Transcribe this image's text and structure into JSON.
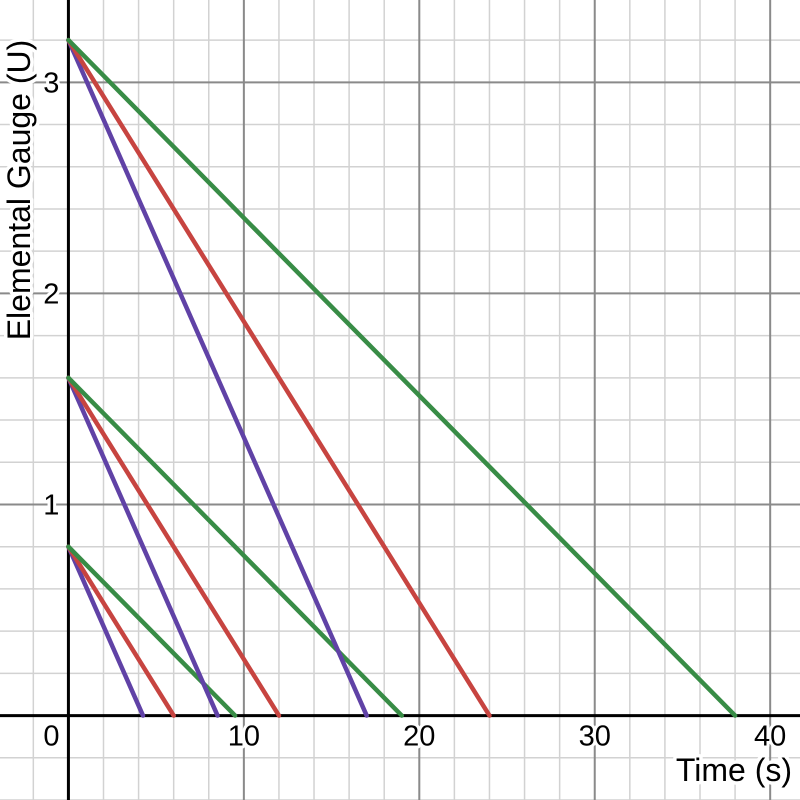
{
  "chart_data": {
    "type": "line",
    "title": "",
    "xlabel": "Time (s)",
    "ylabel": "Elemental Gauge (U)",
    "xlim": [
      -3.9,
      41.7
    ],
    "ylim": [
      -0.4,
      3.39
    ],
    "x_ticks": [
      0,
      10,
      20,
      30,
      40
    ],
    "y_ticks": [
      1,
      2,
      3
    ],
    "grid": {
      "on": true,
      "minor_dx": 2,
      "minor_dy": 0.2,
      "major_dx": 10,
      "major_dy": 1,
      "minor_color": "#d2d2d2",
      "major_color": "#8a8a8a"
    },
    "axis_color": "#000000",
    "label_color": "#000000",
    "legend": "none",
    "colors": {
      "slow_decay_green": "#388c46",
      "medium_decay_red": "#c74440",
      "fast_decay_purple": "#6042a6"
    },
    "series": [
      {
        "name": "gauge-0.8U-purple-fast-rate",
        "color": "#6042a6",
        "start_gauge_u": 0.8,
        "zero_at_s": 4.25,
        "points": [
          [
            0,
            0.8
          ],
          [
            4.25,
            0
          ]
        ]
      },
      {
        "name": "gauge-0.8U-red-medium-rate",
        "color": "#c74440",
        "start_gauge_u": 0.8,
        "zero_at_s": 6,
        "points": [
          [
            0,
            0.8
          ],
          [
            6,
            0
          ]
        ]
      },
      {
        "name": "gauge-0.8U-green-slow-rate",
        "color": "#388c46",
        "start_gauge_u": 0.8,
        "zero_at_s": 9.5,
        "points": [
          [
            0,
            0.8
          ],
          [
            9.5,
            0
          ]
        ]
      },
      {
        "name": "gauge-1.6U-purple-fast-rate",
        "color": "#6042a6",
        "start_gauge_u": 1.6,
        "zero_at_s": 8.5,
        "points": [
          [
            0,
            1.6
          ],
          [
            8.5,
            0
          ]
        ]
      },
      {
        "name": "gauge-1.6U-red-medium-rate",
        "color": "#c74440",
        "start_gauge_u": 1.6,
        "zero_at_s": 12,
        "points": [
          [
            0,
            1.6
          ],
          [
            12,
            0
          ]
        ]
      },
      {
        "name": "gauge-1.6U-green-slow-rate",
        "color": "#388c46",
        "start_gauge_u": 1.6,
        "zero_at_s": 19,
        "points": [
          [
            0,
            1.6
          ],
          [
            19,
            0
          ]
        ]
      },
      {
        "name": "gauge-3.2U-purple-fast-rate",
        "color": "#6042a6",
        "start_gauge_u": 3.2,
        "zero_at_s": 17,
        "points": [
          [
            0,
            3.2
          ],
          [
            17,
            0
          ]
        ]
      },
      {
        "name": "gauge-3.2U-red-medium-rate",
        "color": "#c74440",
        "start_gauge_u": 3.2,
        "zero_at_s": 24,
        "points": [
          [
            0,
            3.2
          ],
          [
            24,
            0
          ]
        ]
      },
      {
        "name": "gauge-3.2U-green-slow-rate",
        "color": "#388c46",
        "start_gauge_u": 3.2,
        "zero_at_s": 38,
        "points": [
          [
            0,
            3.2
          ],
          [
            38,
            0
          ]
        ]
      }
    ],
    "style": {
      "line_width": 4.5,
      "axis_width": 3,
      "grid_minor_width": 1.5,
      "grid_major_width": 2
    }
  }
}
